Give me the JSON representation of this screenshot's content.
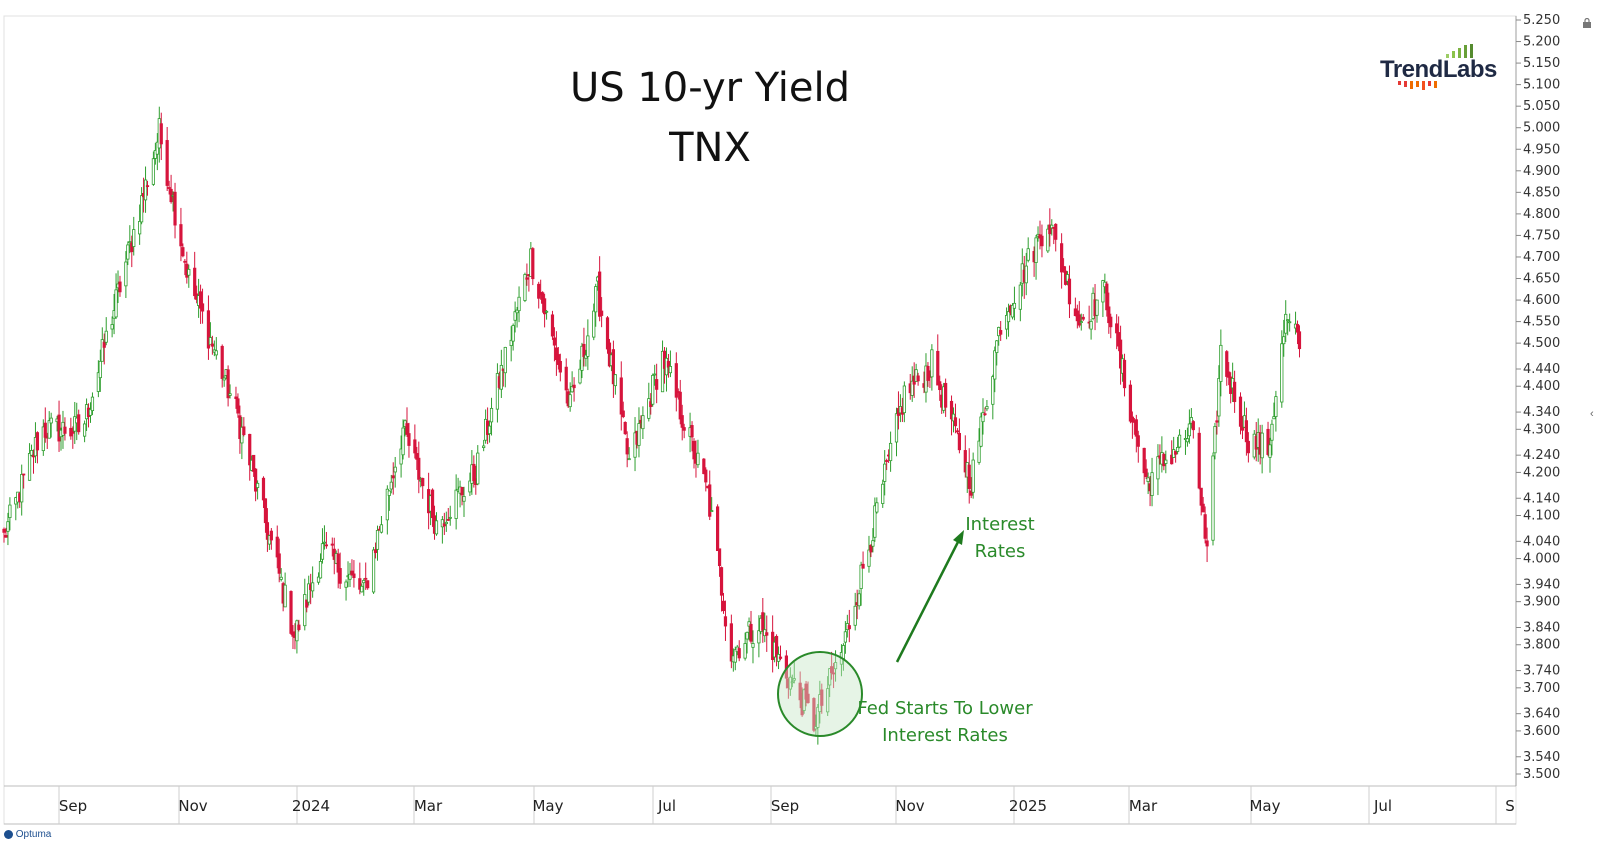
{
  "header": {
    "title_line1": "US 10-yr Yield",
    "title_line2": "TNX"
  },
  "logo": {
    "text": "TrendLabs",
    "icon": "bar-chart-logo-icon"
  },
  "footer": {
    "brand": "Optuma"
  },
  "icons": {
    "lock": "lock-icon",
    "collapse": "chevron-left-icon"
  },
  "annotations": {
    "rates_line1": "Interest",
    "rates_line2": "Rates",
    "fed_line1": "Fed Starts To Lower",
    "fed_line2": "Interest Rates"
  },
  "colors": {
    "up": "#2e9e2e",
    "down": "#d6143c",
    "annotation": "#2a8a2a",
    "highlight": "#c8e6c8"
  },
  "chart_data": {
    "type": "candlestick",
    "title": "US 10-yr Yield TNX",
    "ylim": [
      3.5,
      5.25
    ],
    "y_tick_labels": [
      "5.250",
      "5.200",
      "5.150",
      "5.100",
      "5.050",
      "5.000",
      "4.950",
      "4.900",
      "4.850",
      "4.800",
      "4.750",
      "4.700",
      "4.650",
      "4.600",
      "4.550",
      "4.500",
      "4.440",
      "4.400",
      "4.340",
      "4.300",
      "4.240",
      "4.200",
      "4.140",
      "4.100",
      "4.040",
      "4.000",
      "3.940",
      "3.900",
      "3.840",
      "3.800",
      "3.740",
      "3.700",
      "3.640",
      "3.600",
      "3.540",
      "3.500"
    ],
    "x_tick_labels": [
      "Sep",
      "Nov",
      "2024",
      "Mar",
      "May",
      "Jul",
      "Sep",
      "Nov",
      "2025",
      "Mar",
      "May",
      "Jul",
      "S"
    ],
    "x_range": [
      "2023-08-01",
      "2025-08-31"
    ],
    "anchor_points": [
      {
        "date": "2023-08-01",
        "value": 4.05
      },
      {
        "date": "2023-08-20",
        "value": 4.3
      },
      {
        "date": "2023-09-10",
        "value": 4.3
      },
      {
        "date": "2023-09-30",
        "value": 4.65
      },
      {
        "date": "2023-10-19",
        "value": 4.99
      },
      {
        "date": "2023-11-03",
        "value": 4.65
      },
      {
        "date": "2023-11-28",
        "value": 4.33
      },
      {
        "date": "2023-12-27",
        "value": 3.82
      },
      {
        "date": "2024-01-10",
        "value": 4.02
      },
      {
        "date": "2024-01-31",
        "value": 3.92
      },
      {
        "date": "2024-02-20",
        "value": 4.3
      },
      {
        "date": "2024-03-08",
        "value": 4.08
      },
      {
        "date": "2024-03-28",
        "value": 4.2
      },
      {
        "date": "2024-04-25",
        "value": 4.7
      },
      {
        "date": "2024-05-15",
        "value": 4.35
      },
      {
        "date": "2024-05-29",
        "value": 4.62
      },
      {
        "date": "2024-06-14",
        "value": 4.22
      },
      {
        "date": "2024-07-01",
        "value": 4.47
      },
      {
        "date": "2024-07-24",
        "value": 4.15
      },
      {
        "date": "2024-08-05",
        "value": 3.78
      },
      {
        "date": "2024-08-19",
        "value": 3.85
      },
      {
        "date": "2024-09-16",
        "value": 3.62
      },
      {
        "date": "2024-09-30",
        "value": 3.78
      },
      {
        "date": "2024-10-15",
        "value": 4.05
      },
      {
        "date": "2024-11-01",
        "value": 4.38
      },
      {
        "date": "2024-11-15",
        "value": 4.45
      },
      {
        "date": "2024-12-05",
        "value": 4.18
      },
      {
        "date": "2024-12-20",
        "value": 4.55
      },
      {
        "date": "2025-01-13",
        "value": 4.79
      },
      {
        "date": "2025-01-29",
        "value": 4.55
      },
      {
        "date": "2025-02-11",
        "value": 4.62
      },
      {
        "date": "2025-03-04",
        "value": 4.18
      },
      {
        "date": "2025-03-28",
        "value": 4.3
      },
      {
        "date": "2025-04-04",
        "value": 4.0
      },
      {
        "date": "2025-04-11",
        "value": 4.48
      },
      {
        "date": "2025-04-25",
        "value": 4.28
      },
      {
        "date": "2025-05-05",
        "value": 4.25
      },
      {
        "date": "2025-05-14",
        "value": 4.55
      },
      {
        "date": "2025-05-21",
        "value": 4.5
      }
    ],
    "annotations": [
      "Interest Rates",
      "Fed Starts To Lower Interest Rates"
    ]
  }
}
